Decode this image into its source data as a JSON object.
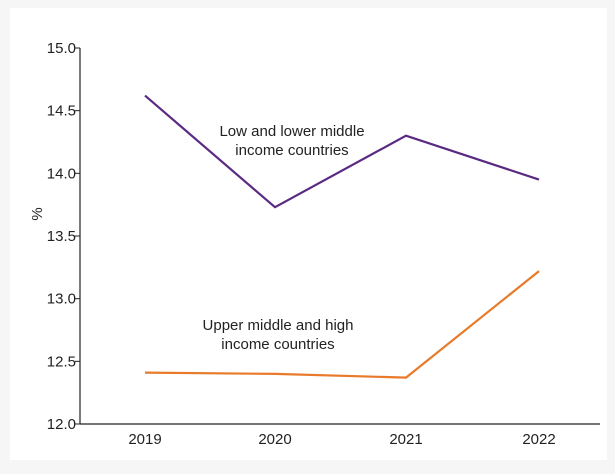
{
  "chart_data": {
    "type": "line",
    "title": "",
    "xlabel": "",
    "ylabel": "%",
    "categories": [
      "2019",
      "2020",
      "2021",
      "2022"
    ],
    "ylim": [
      12.0,
      15.0
    ],
    "yticks": [
      "12.0",
      "12.5",
      "13.0",
      "13.5",
      "14.0",
      "14.5",
      "15.0"
    ],
    "grid": false,
    "legend": "none",
    "series": [
      {
        "values": [
          14.62,
          13.73,
          14.3,
          13.95
        ],
        "color": "#5a2a82",
        "label_lines": [
          "Low and lower middle",
          "income countries"
        ]
      },
      {
        "values": [
          12.41,
          12.4,
          12.37,
          13.22
        ],
        "color": "#e87a2a",
        "label_lines": [
          "Upper middle and high",
          "income countries"
        ]
      }
    ]
  }
}
